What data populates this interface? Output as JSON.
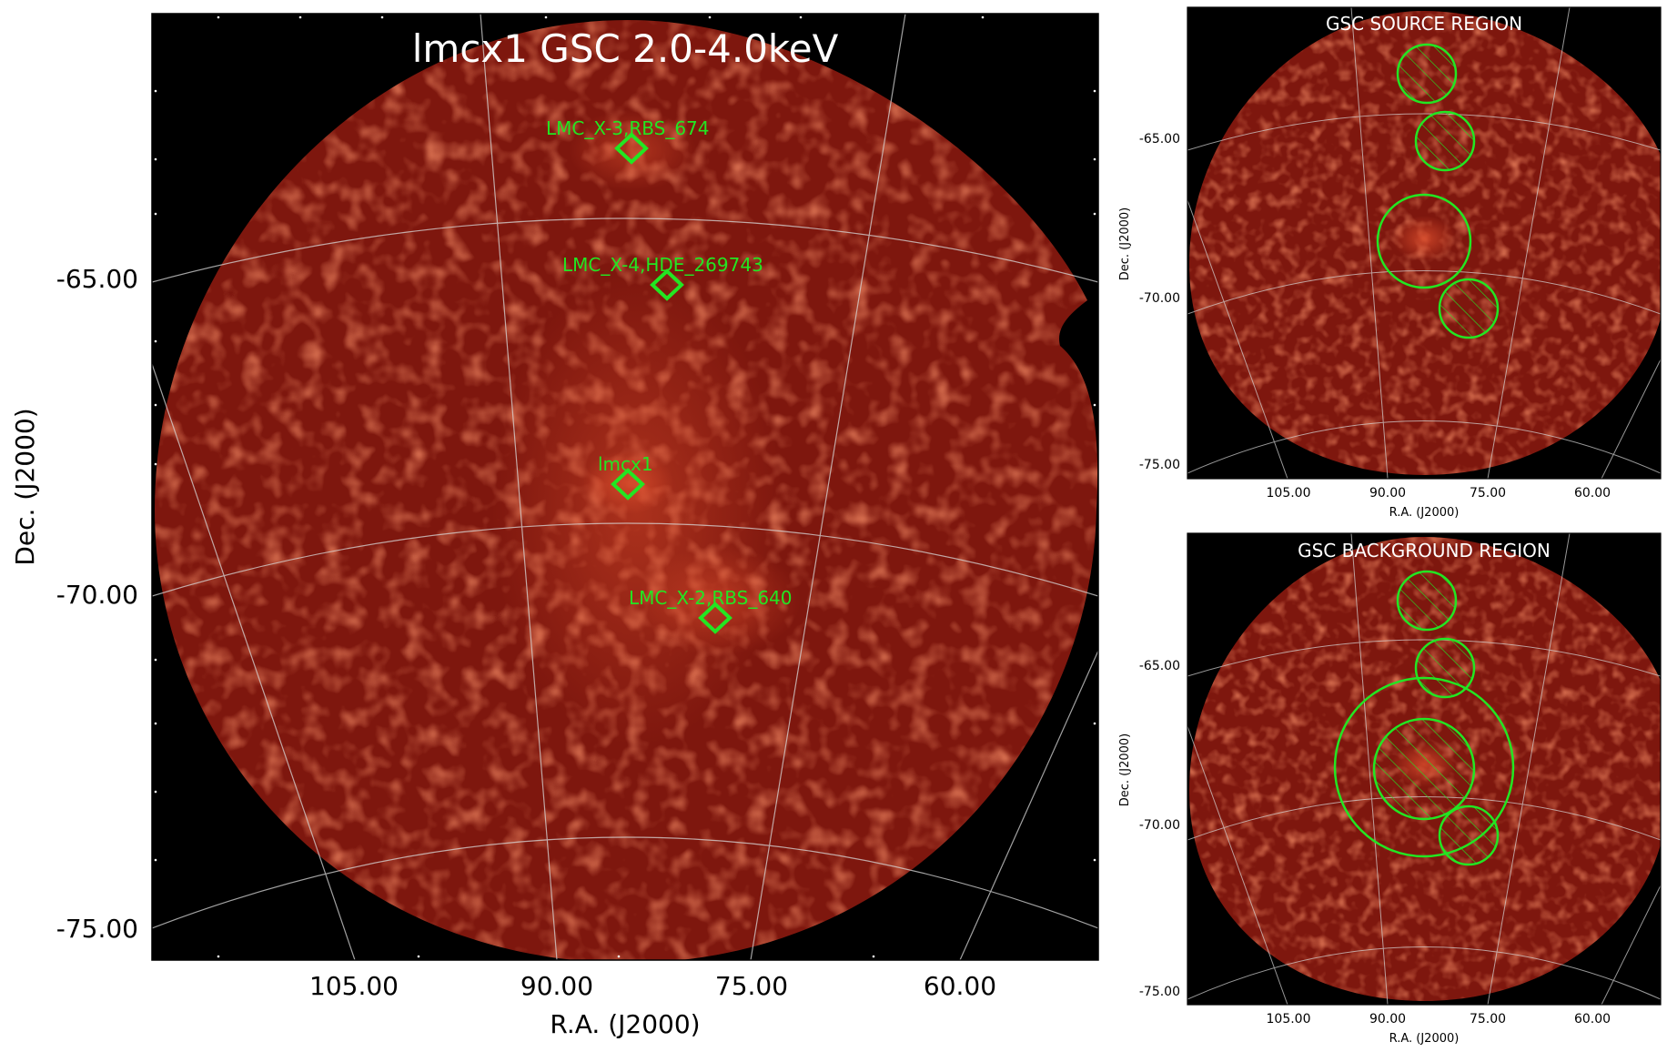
{
  "main_panel": {
    "title": "lmcx1 GSC 2.0-4.0keV",
    "y_label": "Dec. (J2000)",
    "x_label": "R.A. (J2000)",
    "y_ticks": [
      "-65.00",
      "-70.00",
      "-75.00"
    ],
    "x_ticks": [
      "105.00",
      "90.00",
      "75.00",
      "60.00"
    ],
    "sources": [
      {
        "label": "LMC_X-3,RBS_674"
      },
      {
        "label": "LMC_X-4,HDE_269743"
      },
      {
        "label": "lmcx1"
      },
      {
        "label": "LMC_X-2,RBS_640"
      }
    ]
  },
  "source_panel": {
    "title": "GSC SOURCE REGION",
    "y_label": "Dec. (J2000)",
    "x_label": "R.A. (J2000)",
    "y_ticks": [
      "-65.00",
      "-70.00",
      "-75.00"
    ],
    "x_ticks": [
      "105.00",
      "90.00",
      "75.00",
      "60.00"
    ]
  },
  "background_panel": {
    "title": "GSC BACKGROUND REGION",
    "y_label": "Dec. (J2000)",
    "x_label": "R.A. (J2000)",
    "y_ticks": [
      "-65.00",
      "-70.00",
      "-75.00"
    ],
    "x_ticks": [
      "105.00",
      "90.00",
      "75.00",
      "60.00"
    ]
  },
  "colors": {
    "sky_background": "#000000",
    "field_base": "#8a1a10",
    "field_bright": "#c83a22",
    "marker_green": "#22e622",
    "grid": "#d8d8d8",
    "title_text": "#ffffff"
  }
}
